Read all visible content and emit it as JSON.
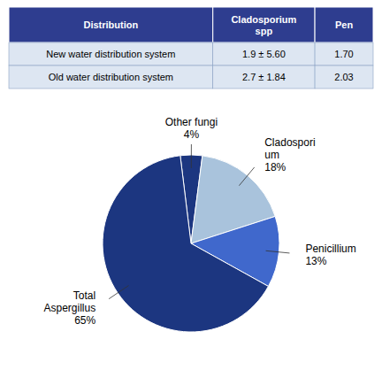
{
  "chart_data": [
    {
      "type": "table",
      "color": "#2E3D8F",
      "columns": [
        "Distribution",
        "Cladosporium\nspp",
        "Pen"
      ],
      "rows": [
        [
          "New water distribution system",
          "1.9 ± 5.60",
          "1.70"
        ],
        [
          "Old water distribution system",
          "2.7 ± 1.84",
          "2.03"
        ]
      ]
    },
    {
      "type": "pie",
      "categories": [
        "Other fungi",
        "Cladospori\num",
        "Penicillium",
        "Total\nAspergillus"
      ],
      "values": [
        4,
        18,
        13,
        65
      ],
      "value_labels": [
        "4%",
        "18%",
        "13%",
        "65%"
      ],
      "colors": [
        "#1C3680",
        "#A9C3DC",
        "#4068CC",
        "#1C3680"
      ]
    }
  ]
}
